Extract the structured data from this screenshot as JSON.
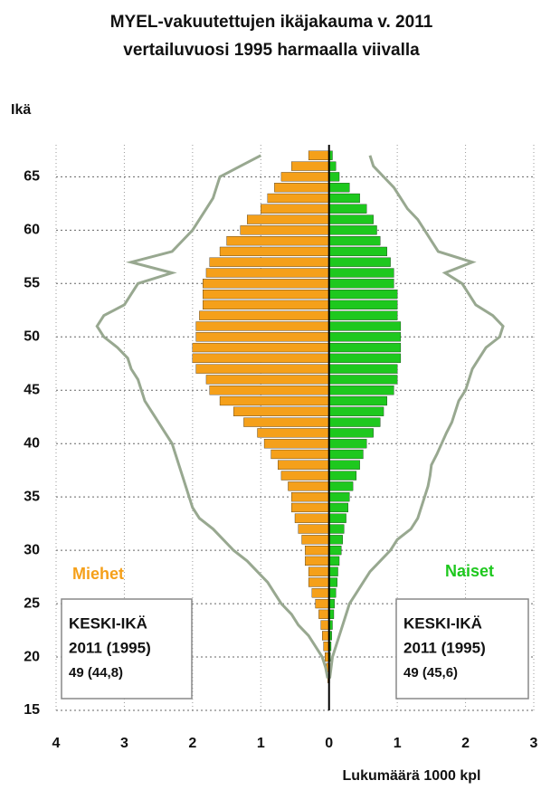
{
  "chart_data": {
    "type": "bar",
    "title": [
      "MYEL-vakuutettujen ikäjakauma v. 2011",
      "vertailuvuosi 1995 harmaalla viivalla"
    ],
    "y_label": "Ikä",
    "x_label": "Lukumäärä 1000 kpl",
    "x": [
      18,
      19,
      20,
      21,
      22,
      23,
      24,
      25,
      26,
      27,
      28,
      29,
      30,
      31,
      32,
      33,
      34,
      35,
      36,
      37,
      38,
      39,
      40,
      41,
      42,
      43,
      44,
      45,
      46,
      47,
      48,
      49,
      50,
      51,
      52,
      53,
      54,
      55,
      56,
      57,
      58,
      59,
      60,
      61,
      62,
      63,
      64,
      65,
      66,
      67
    ],
    "series": [
      {
        "name": "Miehet",
        "type": "bar",
        "color": "#f5a01a",
        "values": [
          -0.02,
          -0.04,
          -0.06,
          -0.08,
          -0.1,
          -0.12,
          -0.15,
          -0.2,
          -0.25,
          -0.3,
          -0.3,
          -0.35,
          -0.35,
          -0.4,
          -0.45,
          -0.5,
          -0.55,
          -0.55,
          -0.6,
          -0.7,
          -0.75,
          -0.85,
          -0.95,
          -1.05,
          -1.25,
          -1.4,
          -1.6,
          -1.75,
          -1.8,
          -1.95,
          -2.0,
          -2.0,
          -1.95,
          -1.95,
          -1.9,
          -1.85,
          -1.85,
          -1.85,
          -1.8,
          -1.75,
          -1.6,
          -1.5,
          -1.3,
          -1.2,
          -1.0,
          -0.9,
          -0.8,
          -0.7,
          -0.55,
          -0.3
        ]
      },
      {
        "name": "Naiset",
        "type": "bar",
        "color": "#1ec81e",
        "values": [
          0.01,
          0.01,
          0.02,
          0.03,
          0.04,
          0.05,
          0.07,
          0.08,
          0.1,
          0.12,
          0.13,
          0.15,
          0.18,
          0.2,
          0.22,
          0.25,
          0.28,
          0.3,
          0.35,
          0.4,
          0.45,
          0.5,
          0.55,
          0.65,
          0.75,
          0.8,
          0.85,
          0.95,
          1.0,
          1.0,
          1.05,
          1.05,
          1.05,
          1.05,
          1.0,
          1.0,
          1.0,
          0.95,
          0.95,
          0.9,
          0.85,
          0.75,
          0.7,
          0.65,
          0.55,
          0.45,
          0.3,
          0.15,
          0.1,
          0.05
        ]
      },
      {
        "type": "line",
        "color": "#98a890",
        "values": [
          -0.02,
          -0.05,
          -0.1,
          -0.2,
          -0.3,
          -0.45,
          -0.55,
          -0.7,
          -0.8,
          -0.9,
          -1.05,
          -1.2,
          -1.4,
          -1.55,
          -1.7,
          -1.9,
          -2.0,
          -2.05,
          -2.1,
          -2.15,
          -2.2,
          -2.25,
          -2.3,
          -2.4,
          -2.5,
          -2.6,
          -2.7,
          -2.75,
          -2.8,
          -2.9,
          -2.95,
          -3.1,
          -3.3,
          -3.4,
          -3.3,
          -3.0,
          -2.9,
          -2.8,
          -2.3,
          -2.9,
          -2.3,
          -2.15,
          -2.0,
          -1.9,
          -1.8,
          -1.7,
          -1.65,
          -1.6,
          -1.3,
          -1.0
        ]
      },
      {
        "type": "line",
        "color": "#98a890",
        "values": [
          0.01,
          0.03,
          0.05,
          0.1,
          0.15,
          0.2,
          0.25,
          0.3,
          0.4,
          0.5,
          0.6,
          0.75,
          0.9,
          1.0,
          1.2,
          1.3,
          1.35,
          1.4,
          1.45,
          1.48,
          1.5,
          1.58,
          1.65,
          1.72,
          1.8,
          1.85,
          1.9,
          2.0,
          2.05,
          2.1,
          2.2,
          2.3,
          2.5,
          2.55,
          2.4,
          2.15,
          2.05,
          1.95,
          1.7,
          2.1,
          1.6,
          1.5,
          1.4,
          1.3,
          1.15,
          1.05,
          0.95,
          0.8,
          0.65,
          0.6
        ]
      }
    ],
    "xlim": [
      -4,
      3
    ],
    "xticks": [
      {
        "value": -4,
        "label": "4"
      },
      {
        "value": -3,
        "label": "3"
      },
      {
        "value": -2,
        "label": "2"
      },
      {
        "value": -1,
        "label": "1"
      },
      0,
      1,
      2,
      3
    ],
    "ylim": [
      15,
      68
    ],
    "yticks": [
      15,
      20,
      25,
      30,
      35,
      40,
      45,
      50,
      55,
      60,
      65
    ],
    "grid": true,
    "annotations": [
      {
        "lines": [
          "KESKI-IKÄ",
          "2011 (1995)",
          "49 (44,8)"
        ]
      },
      {
        "lines": [
          "KESKI-IKÄ",
          "2011 (1995)",
          "49 (45,6)"
        ]
      }
    ]
  }
}
